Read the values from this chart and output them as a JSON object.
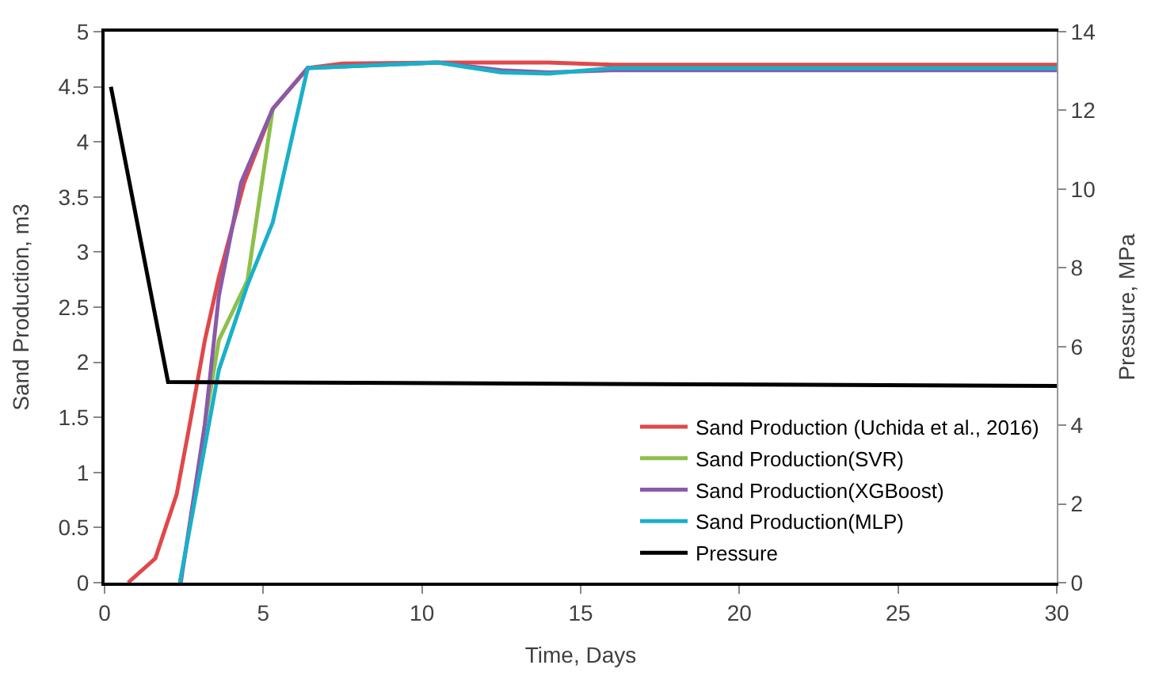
{
  "chart_data": {
    "type": "line",
    "xlabel": "Time, Days",
    "ylabel": "Sand Production, m3",
    "y2label": "Pressure, MPa",
    "xlim": [
      0,
      30
    ],
    "xticks": [
      0,
      5,
      10,
      15,
      20,
      25,
      30
    ],
    "ylim": [
      0,
      5
    ],
    "yticks": [
      0,
      0.5,
      1,
      1.5,
      2,
      2.5,
      3,
      3.5,
      4,
      4.5,
      5
    ],
    "y2lim": [
      0,
      14
    ],
    "y2ticks": [
      0,
      2,
      4,
      6,
      8,
      10,
      12,
      14
    ],
    "legend": "bottom right",
    "marker": "none",
    "line_style": "solid",
    "series": [
      {
        "name": "Sand Production (Uchida et al., 2016)",
        "color": "#e0484a",
        "x": [
          0.74,
          1.6,
          2.27,
          2.66,
          3.16,
          3.6,
          4.4,
          5.3,
          6.4,
          7.5,
          10.5,
          14,
          16,
          30
        ],
        "values": [
          0,
          0.22,
          0.8,
          1.4,
          2.2,
          2.77,
          3.63,
          4.3,
          4.67,
          4.71,
          4.72,
          4.72,
          4.7,
          4.7
        ]
      },
      {
        "name": "Sand Production(SVR)",
        "color": "#8cc04a",
        "x": [
          3.16,
          3.6,
          4.5,
          5.3
        ],
        "values": [
          1.44,
          2.2,
          2.74,
          4.3
        ]
      },
      {
        "name": "Sand Production(XGBoost)",
        "color": "#8a5aa8",
        "x": [
          2.4,
          3.16,
          3.6,
          4.3,
          5.3,
          6.4,
          10.5,
          12.5,
          14,
          16,
          30
        ],
        "values": [
          0,
          1.44,
          2.6,
          3.63,
          4.3,
          4.67,
          4.72,
          4.65,
          4.63,
          4.65,
          4.65
        ]
      },
      {
        "name": "Sand Production(MLP)",
        "color": "#1ab0c8",
        "x": [
          2.37,
          3.6,
          4.5,
          5.3,
          6.4,
          10.5,
          12.5,
          14,
          16,
          30
        ],
        "values": [
          0,
          1.93,
          2.7,
          3.27,
          4.67,
          4.72,
          4.63,
          4.62,
          4.67,
          4.67
        ]
      },
      {
        "name": "Pressure",
        "color": "#000000",
        "axis": "y2",
        "x": [
          0.2,
          2.0,
          30
        ],
        "values": [
          12.6,
          5.1,
          5.0
        ]
      }
    ]
  }
}
